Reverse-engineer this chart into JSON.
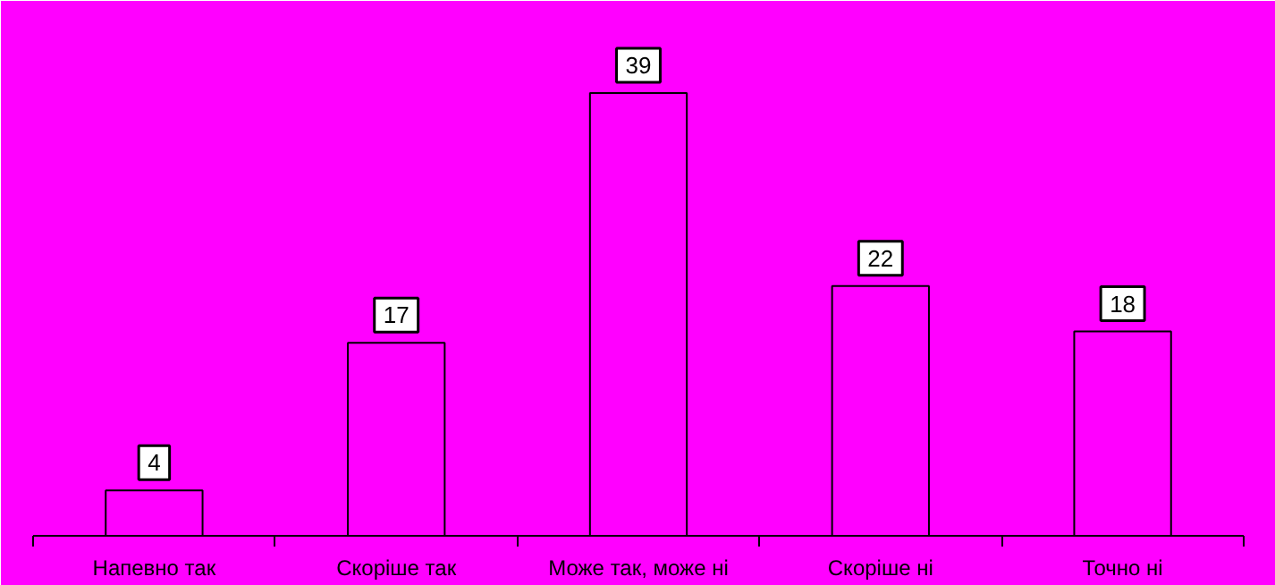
{
  "chart_data": {
    "type": "bar",
    "categories": [
      "Напевно так",
      "Скоріше так",
      "Може так, може ні",
      "Скоріше ні",
      "Точно ні"
    ],
    "values": [
      4,
      17,
      39,
      22,
      18
    ],
    "color": "#ff00ff",
    "data_labels": true,
    "grid": false
  }
}
